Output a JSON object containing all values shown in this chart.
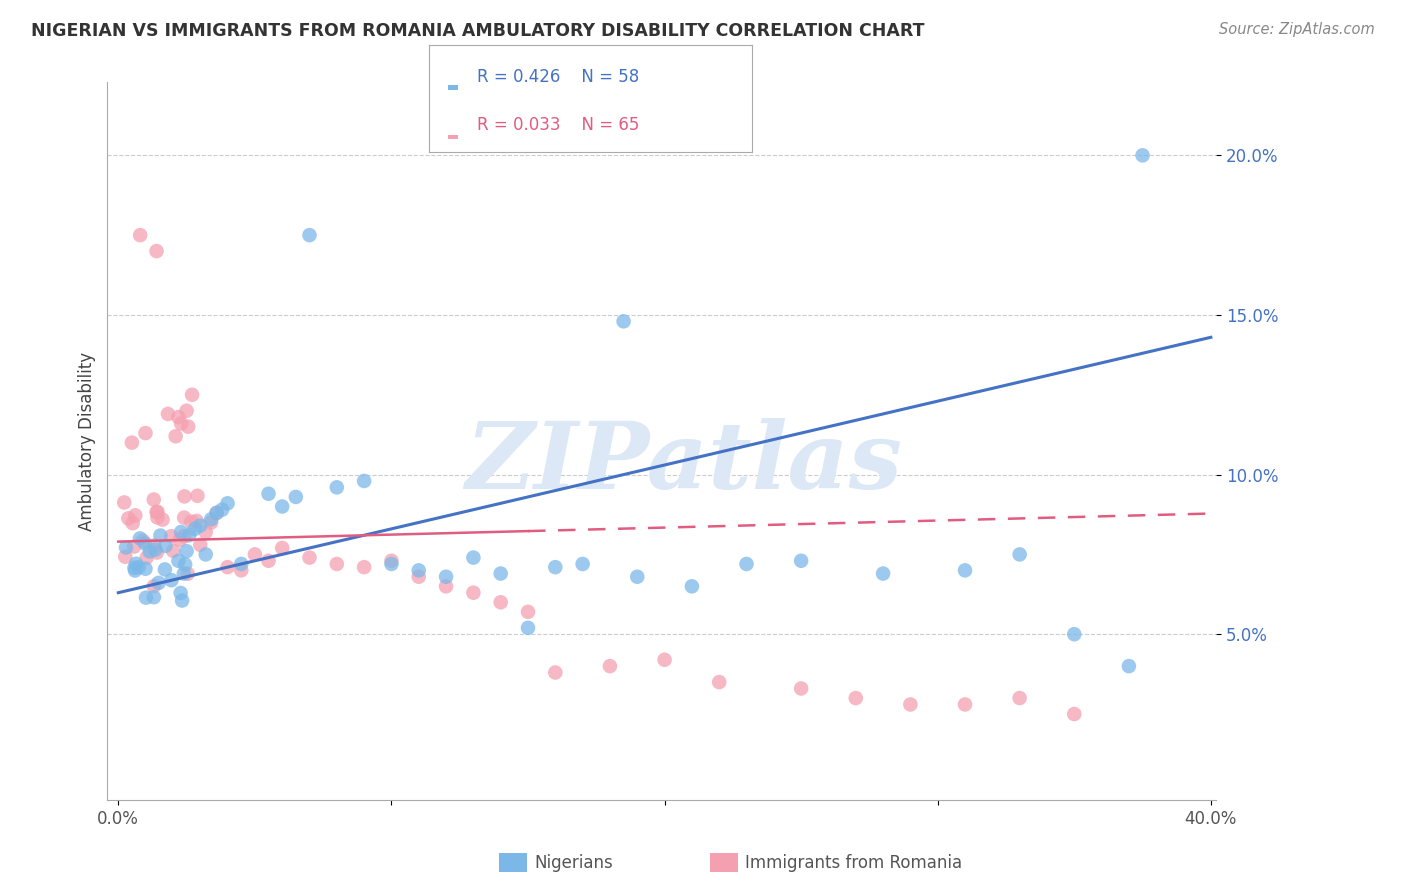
{
  "title": "NIGERIAN VS IMMIGRANTS FROM ROMANIA AMBULATORY DISABILITY CORRELATION CHART",
  "source": "Source: ZipAtlas.com",
  "ylabel": "Ambulatory Disability",
  "blue_color": "#7bb8e8",
  "pink_color": "#f4a0b0",
  "blue_line_color": "#4472c4",
  "pink_line_color": "#e05c80",
  "watermark": "ZIPatlas",
  "watermark_color": "#dce8f5",
  "legend_blue_r": "R = 0.426",
  "legend_blue_n": "N = 58",
  "legend_pink_r": "R = 0.033",
  "legend_pink_n": "N = 65",
  "ytick_color": "#4472c4",
  "xtick_color": "#555555",
  "blue_x": [
    0.002,
    0.003,
    0.004,
    0.005,
    0.006,
    0.007,
    0.008,
    0.009,
    0.01,
    0.011,
    0.012,
    0.013,
    0.014,
    0.015,
    0.016,
    0.017,
    0.018,
    0.019,
    0.02,
    0.021,
    0.022,
    0.023,
    0.024,
    0.025,
    0.026,
    0.028,
    0.03,
    0.032,
    0.034,
    0.036,
    0.038,
    0.04,
    0.045,
    0.05,
    0.055,
    0.06,
    0.065,
    0.07,
    0.08,
    0.09,
    0.1,
    0.11,
    0.12,
    0.13,
    0.14,
    0.15,
    0.16,
    0.17,
    0.19,
    0.21,
    0.23,
    0.25,
    0.28,
    0.31,
    0.33,
    0.35,
    0.37,
    0.38
  ],
  "blue_y": [
    0.07,
    0.068,
    0.066,
    0.072,
    0.069,
    0.071,
    0.065,
    0.063,
    0.074,
    0.073,
    0.075,
    0.067,
    0.064,
    0.076,
    0.062,
    0.079,
    0.078,
    0.071,
    0.08,
    0.077,
    0.073,
    0.082,
    0.069,
    0.076,
    0.081,
    0.083,
    0.084,
    0.075,
    0.086,
    0.088,
    0.089,
    0.091,
    0.072,
    0.092,
    0.094,
    0.09,
    0.093,
    0.175,
    0.096,
    0.098,
    0.072,
    0.07,
    0.068,
    0.074,
    0.069,
    0.052,
    0.071,
    0.072,
    0.068,
    0.065,
    0.072,
    0.073,
    0.069,
    0.07,
    0.075,
    0.05,
    0.04,
    0.2
  ],
  "pink_x": [
    0.001,
    0.002,
    0.003,
    0.004,
    0.005,
    0.005,
    0.006,
    0.006,
    0.007,
    0.007,
    0.008,
    0.008,
    0.009,
    0.009,
    0.01,
    0.01,
    0.011,
    0.011,
    0.012,
    0.012,
    0.013,
    0.013,
    0.014,
    0.014,
    0.015,
    0.015,
    0.016,
    0.016,
    0.017,
    0.018,
    0.019,
    0.02,
    0.021,
    0.022,
    0.023,
    0.025,
    0.027,
    0.03,
    0.032,
    0.034,
    0.036,
    0.04,
    0.045,
    0.05,
    0.055,
    0.06,
    0.07,
    0.08,
    0.09,
    0.1,
    0.11,
    0.12,
    0.13,
    0.14,
    0.15,
    0.16,
    0.18,
    0.2,
    0.22,
    0.25,
    0.27,
    0.29,
    0.31,
    0.33,
    0.35
  ],
  "pink_y": [
    0.073,
    0.071,
    0.069,
    0.072,
    0.068,
    0.08,
    0.075,
    0.078,
    0.074,
    0.082,
    0.07,
    0.076,
    0.083,
    0.079,
    0.081,
    0.071,
    0.085,
    0.077,
    0.086,
    0.073,
    0.084,
    0.08,
    0.119,
    0.123,
    0.088,
    0.091,
    0.09,
    0.093,
    0.115,
    0.113,
    0.11,
    0.108,
    0.112,
    0.118,
    0.116,
    0.12,
    0.125,
    0.078,
    0.082,
    0.085,
    0.088,
    0.071,
    0.07,
    0.075,
    0.073,
    0.077,
    0.074,
    0.072,
    0.071,
    0.073,
    0.068,
    0.065,
    0.063,
    0.06,
    0.057,
    0.038,
    0.04,
    0.042,
    0.035,
    0.033,
    0.03,
    0.028,
    0.032,
    0.03,
    0.025
  ]
}
